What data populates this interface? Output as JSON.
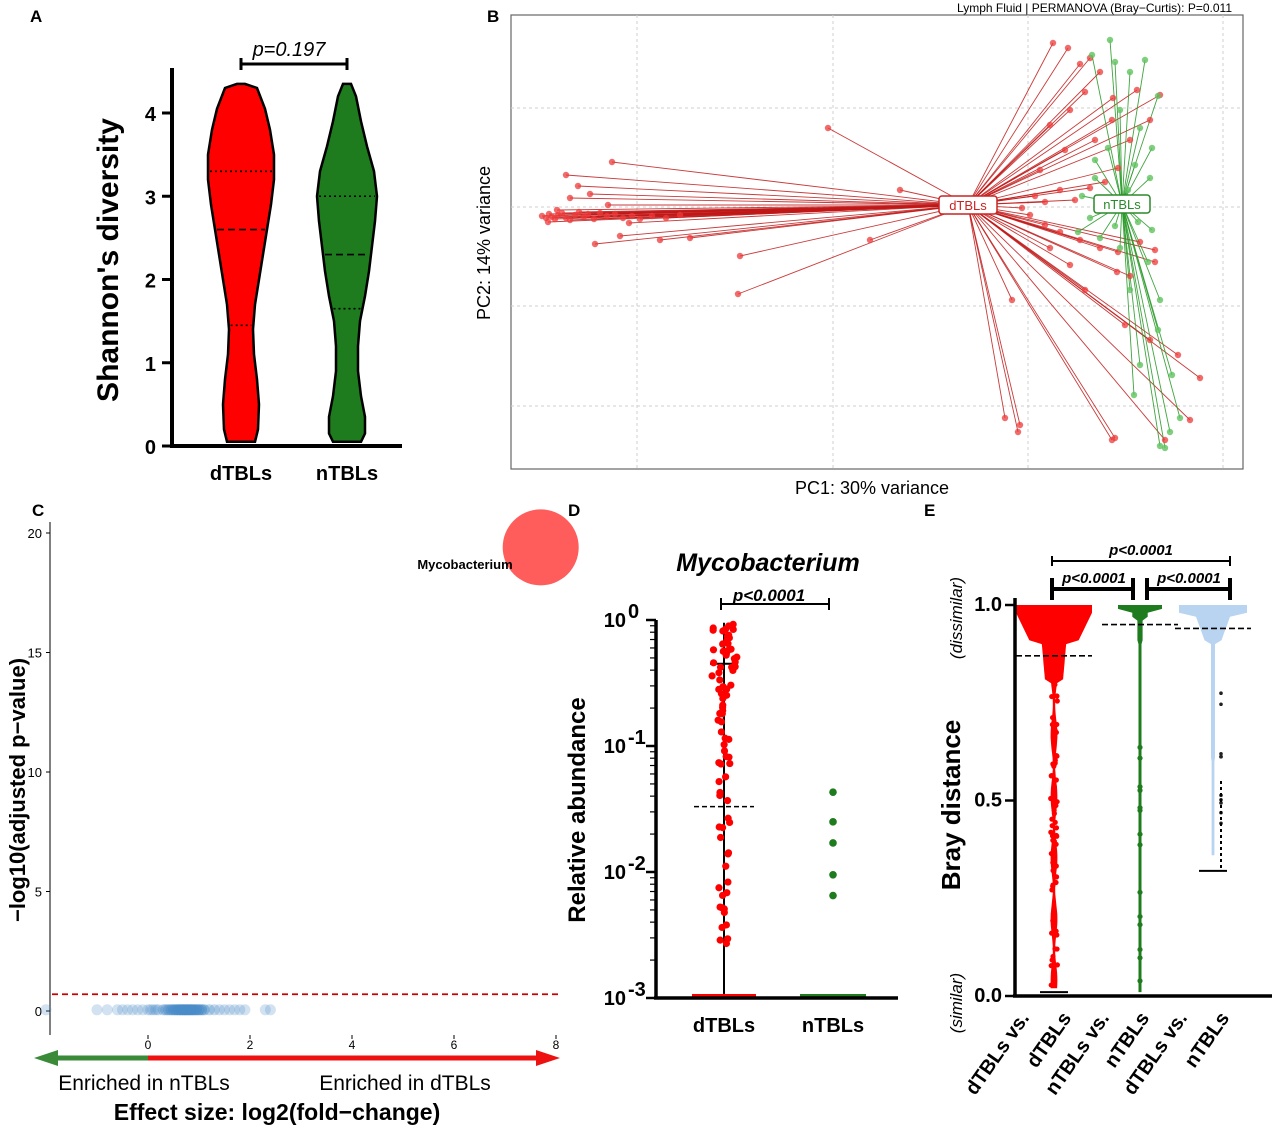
{
  "panels": {
    "A": {
      "label": "A",
      "ylabel": "Shannon's diversity",
      "pvalue": "p=0.197",
      "yticks": [
        "0",
        "1",
        "2",
        "3",
        "4"
      ],
      "categories": [
        "dTBLs",
        "nTBLs"
      ]
    },
    "B": {
      "label": "B",
      "title": "Lymph Fluid | PERMANOVA (Bray−Curtis): P=0.011",
      "xlabel": "PC1: 30%  variance",
      "ylabel": "PC2: 14%  variance",
      "centroid_labels": [
        "dTBLs",
        "nTBLs"
      ]
    },
    "C": {
      "label": "C",
      "ylabel": "−log10(adjusted p−value)",
      "xlabel": "Effect size: log2(fold−change)",
      "yticks": [
        "0",
        "5",
        "10",
        "15",
        "20"
      ],
      "xticks": [
        "0",
        "2",
        "4",
        "6",
        "8"
      ],
      "annotation": "Mycobacterium",
      "arrow_left": "Enriched in nTBLs",
      "arrow_right": "Enriched in dTBLs"
    },
    "D": {
      "label": "D",
      "title": "Mycobacterium",
      "ylabel": "Relative abundance",
      "pvalue": "p<0.0001",
      "categories": [
        "dTBLs",
        "nTBLs"
      ]
    },
    "E": {
      "label": "E",
      "ylabel": "Bray distance",
      "top_note": "(dissimilar)",
      "bottom_note": "(similar)",
      "yticks": [
        "0.0",
        "0.5",
        "1.0"
      ],
      "pvalue_top": "p<0.0001",
      "pvalue_left": "p<0.0001",
      "pvalue_right": "p<0.0001",
      "categories": [
        "dTBLs vs. dTBLs",
        "nTBLs vs. nTBLs",
        "dTBLs vs. nTBLs"
      ],
      "category_lines": [
        [
          "dTBLs vs.",
          "dTBLs"
        ],
        [
          "nTBLs vs.",
          "nTBLs"
        ],
        [
          "dTBLs vs.",
          "nTBLs"
        ]
      ]
    }
  },
  "colors": {
    "dTBLs": "#ff0000",
    "nTBLs": "#1e7b1e",
    "between": "#b8d4f0",
    "volcano_points": "#4a8cc8",
    "threshold": "#cc0000"
  },
  "chart_data": [
    {
      "panel": "A",
      "type": "violin",
      "ylabel": "Shannon's diversity",
      "ylim": [
        0,
        4.5
      ],
      "categories": [
        "dTBLs",
        "nTBLs"
      ],
      "series": [
        {
          "name": "dTBLs",
          "min": 0.05,
          "q1": 1.45,
          "median": 2.6,
          "q3": 3.3,
          "max": 4.35
        },
        {
          "name": "nTBLs",
          "min": 0.05,
          "q1": 1.65,
          "median": 2.3,
          "q3": 3.0,
          "max": 4.35
        }
      ],
      "annotation": "p=0.197"
    },
    {
      "panel": "B",
      "type": "scatter",
      "title": "Lymph Fluid | PERMANOVA (Bray−Curtis): P=0.011",
      "xlabel": "PC1: 30%  variance",
      "ylabel": "PC2: 14%  variance",
      "xlim": [
        -0.35,
        0.3
      ],
      "ylim": [
        -0.3,
        0.25
      ],
      "grid": true,
      "series": [
        {
          "name": "dTBLs",
          "centroid": [
            0.0,
            0.0
          ]
        },
        {
          "name": "nTBLs",
          "centroid": [
            0.15,
            0.0
          ]
        }
      ]
    },
    {
      "panel": "C",
      "type": "scatter",
      "xlabel": "Effect size: log2(fold−change)",
      "ylabel": "−log10(adjusted p−value)",
      "xlim": [
        -2,
        8
      ],
      "ylim": [
        0,
        20
      ],
      "threshold": 0.7,
      "points": [
        {
          "label": "Mycobacterium",
          "x": 7.7,
          "y": 19.4
        }
      ]
    },
    {
      "panel": "D",
      "type": "scatter",
      "title": "Mycobacterium",
      "ylabel": "Relative abundance",
      "yscale": "log",
      "ylim": [
        0.001,
        1
      ],
      "categories": [
        "dTBLs",
        "nTBLs"
      ],
      "series": [
        {
          "name": "dTBLs",
          "mean": 0.033,
          "upper": 0.45
        },
        {
          "name": "nTBLs",
          "values": [
            0.043,
            0.025,
            0.017,
            0.0095,
            0.0065
          ]
        }
      ],
      "annotation": "p<0.0001"
    },
    {
      "panel": "E",
      "type": "scatter",
      "ylabel": "Bray distance",
      "ylim": [
        0,
        1
      ],
      "categories": [
        "dTBLs vs. dTBLs",
        "nTBLs vs. nTBLs",
        "dTBLs vs. nTBLs"
      ],
      "series": [
        {
          "name": "dTBLs vs. dTBLs",
          "median": 0.87,
          "min": 0.01
        },
        {
          "name": "nTBLs vs. nTBLs",
          "median": 0.95,
          "min": 0.0
        },
        {
          "name": "dTBLs vs. nTBLs",
          "median": 0.94,
          "min": 0.32
        }
      ]
    }
  ]
}
